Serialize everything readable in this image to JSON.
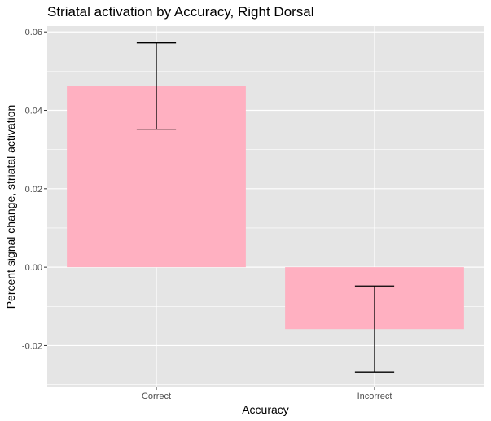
{
  "chart_data": {
    "type": "bar",
    "title": "Striatal activation by Accuracy, Right Dorsal",
    "xlabel": "Accuracy",
    "ylabel": "Percent signal change, striatal activation",
    "categories": [
      "Correct",
      "Incorrect"
    ],
    "values": [
      0.0462,
      -0.0158
    ],
    "error_bars": [
      {
        "low": 0.0352,
        "high": 0.0572
      },
      {
        "low": -0.0268,
        "high": -0.0048
      }
    ],
    "ylim": [
      -0.0305,
      0.0615
    ],
    "y_ticks": [
      -0.02,
      0.0,
      0.02,
      0.04,
      0.06
    ],
    "y_tick_labels": [
      "-0.02",
      "0.00",
      "0.02",
      "0.04",
      "0.06"
    ],
    "grid": true,
    "colors": {
      "bar_fill": "#ffb0c1",
      "panel_background": "#e5e5e5",
      "gridline": "#ffffff",
      "error_bar": "#000000"
    }
  }
}
